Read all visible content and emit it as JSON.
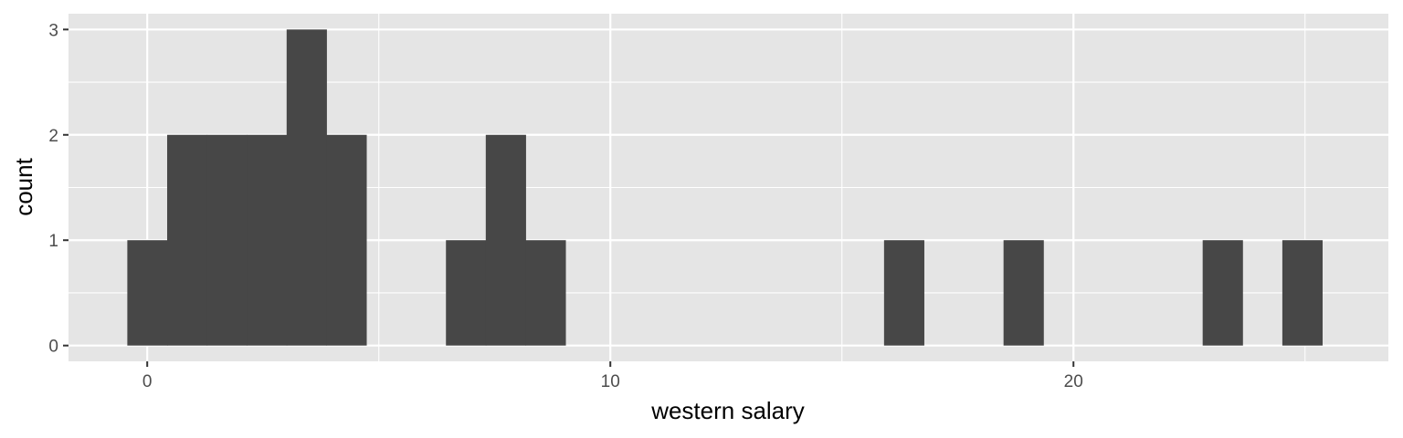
{
  "chart_data": {
    "type": "bar",
    "subtype": "histogram",
    "xlabel": "western salary",
    "ylabel": "count",
    "xlim": [
      -1.7,
      26.8
    ],
    "ylim": [
      -0.15,
      3.15
    ],
    "xticks": [
      0,
      10,
      20
    ],
    "xtick_labels": [
      "0",
      "10",
      "20"
    ],
    "yticks": [
      0,
      1,
      2,
      3
    ],
    "ytick_labels": [
      "0",
      "1",
      "2",
      "3"
    ],
    "grid": true,
    "legend": "none",
    "bin_width": 0.86,
    "bins": [
      {
        "x_start": -0.43,
        "x_end": 0.43,
        "count": 1
      },
      {
        "x_start": 0.43,
        "x_end": 1.29,
        "count": 2
      },
      {
        "x_start": 1.29,
        "x_end": 2.15,
        "count": 2
      },
      {
        "x_start": 2.15,
        "x_end": 3.01,
        "count": 2
      },
      {
        "x_start": 3.01,
        "x_end": 3.87,
        "count": 3
      },
      {
        "x_start": 3.87,
        "x_end": 4.73,
        "count": 2
      },
      {
        "x_start": 6.45,
        "x_end": 7.31,
        "count": 1
      },
      {
        "x_start": 7.31,
        "x_end": 8.17,
        "count": 2
      },
      {
        "x_start": 8.17,
        "x_end": 9.03,
        "count": 1
      },
      {
        "x_start": 15.91,
        "x_end": 16.77,
        "count": 1
      },
      {
        "x_start": 18.49,
        "x_end": 19.35,
        "count": 1
      },
      {
        "x_start": 22.79,
        "x_end": 23.65,
        "count": 1
      },
      {
        "x_start": 24.51,
        "x_end": 25.37,
        "count": 1
      }
    ],
    "colors": {
      "panel_background": "#e5e5e5",
      "grid_line": "#ffffff",
      "bar_fill": "#474747",
      "tick_label": "#4d4d4d",
      "tick_mark": "#333333",
      "axis_title": "#000000"
    }
  }
}
